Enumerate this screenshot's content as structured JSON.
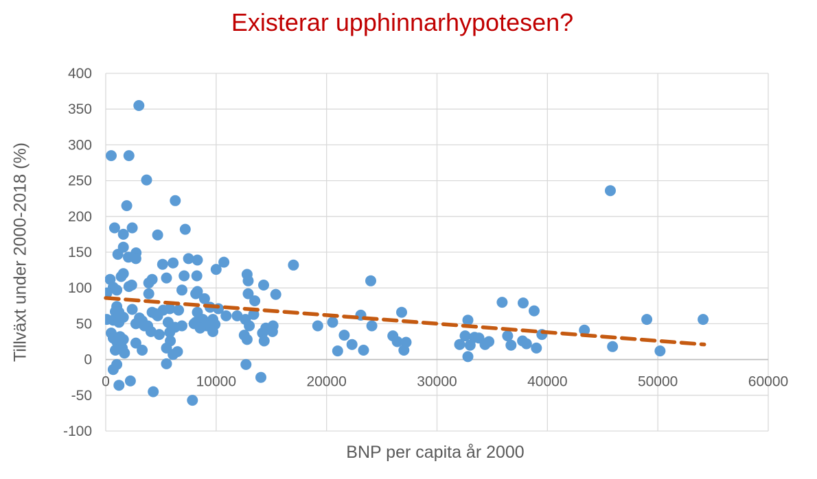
{
  "chart_data": {
    "type": "scatter",
    "title": "Existerar upphinnarhypotesen?",
    "xlabel": "BNP per capita år 2000",
    "ylabel": "Tillväxt under 2000-2018 (%)",
    "xlim": [
      0,
      60000
    ],
    "ylim": [
      -100,
      400
    ],
    "x_ticks": [
      0,
      10000,
      20000,
      30000,
      40000,
      50000,
      60000
    ],
    "y_ticks": [
      -100,
      -50,
      0,
      50,
      100,
      150,
      200,
      250,
      300,
      350,
      400
    ],
    "grid": "both",
    "legend": "none",
    "series": [
      {
        "name": "countries",
        "points": [
          [
            3000,
            355
          ],
          [
            500,
            285
          ],
          [
            2100,
            285
          ],
          [
            3700,
            251
          ],
          [
            45700,
            236
          ],
          [
            6300,
            222
          ],
          [
            1900,
            215
          ],
          [
            800,
            184
          ],
          [
            2400,
            184
          ],
          [
            7200,
            182
          ],
          [
            1600,
            175
          ],
          [
            4700,
            174
          ],
          [
            1600,
            157
          ],
          [
            2750,
            149
          ],
          [
            1100,
            147
          ],
          [
            2050,
            143
          ],
          [
            2730,
            141
          ],
          [
            7500,
            141
          ],
          [
            8300,
            139
          ],
          [
            5150,
            133
          ],
          [
            6100,
            135
          ],
          [
            10700,
            136
          ],
          [
            10000,
            126
          ],
          [
            17000,
            132
          ],
          [
            12800,
            119
          ],
          [
            12900,
            110
          ],
          [
            24000,
            110
          ],
          [
            1600,
            120
          ],
          [
            1400,
            116
          ],
          [
            400,
            112
          ],
          [
            4200,
            112
          ],
          [
            3900,
            107
          ],
          [
            5500,
            114
          ],
          [
            7100,
            117
          ],
          [
            8250,
            117
          ],
          [
            14300,
            104
          ],
          [
            2350,
            104
          ],
          [
            2100,
            102
          ],
          [
            680,
            101
          ],
          [
            100,
            93
          ],
          [
            1000,
            97
          ],
          [
            3900,
            92
          ],
          [
            6900,
            97
          ],
          [
            8150,
            92
          ],
          [
            8300,
            95
          ],
          [
            8950,
            85
          ],
          [
            12900,
            92
          ],
          [
            15400,
            91
          ],
          [
            13500,
            82
          ],
          [
            35900,
            80
          ],
          [
            37800,
            79
          ],
          [
            1000,
            74
          ],
          [
            9450,
            73
          ],
          [
            10200,
            71
          ],
          [
            5800,
            71
          ],
          [
            5200,
            69
          ],
          [
            6600,
            69
          ],
          [
            2400,
            70
          ],
          [
            870,
            67
          ],
          [
            1200,
            66
          ],
          [
            4200,
            66
          ],
          [
            8300,
            66
          ],
          [
            26800,
            66
          ],
          [
            4500,
            64
          ],
          [
            13400,
            63
          ],
          [
            23100,
            62
          ],
          [
            38800,
            68
          ],
          [
            4700,
            61
          ],
          [
            11900,
            61
          ],
          [
            10900,
            61
          ],
          [
            1600,
            59
          ],
          [
            3050,
            58
          ],
          [
            100,
            56
          ],
          [
            680,
            55
          ],
          [
            8800,
            56
          ],
          [
            9700,
            56
          ],
          [
            12650,
            56
          ],
          [
            32800,
            55
          ],
          [
            49000,
            56
          ],
          [
            54100,
            56
          ],
          [
            3300,
            54
          ],
          [
            1200,
            52
          ],
          [
            5650,
            52
          ],
          [
            8150,
            52
          ],
          [
            20550,
            52
          ],
          [
            2730,
            50
          ],
          [
            8000,
            50
          ],
          [
            9900,
            49
          ],
          [
            3500,
            47
          ],
          [
            3800,
            47
          ],
          [
            6900,
            47
          ],
          [
            9150,
            47
          ],
          [
            13000,
            47
          ],
          [
            15150,
            47
          ],
          [
            19200,
            47
          ],
          [
            24100,
            47
          ],
          [
            14500,
            44
          ],
          [
            8550,
            44
          ],
          [
            6270,
            45
          ],
          [
            43350,
            41
          ],
          [
            4100,
            39
          ],
          [
            9700,
            39
          ],
          [
            15100,
            39
          ],
          [
            5800,
            38
          ],
          [
            14200,
            37
          ],
          [
            500,
            37
          ],
          [
            39500,
            35
          ],
          [
            4850,
            35
          ],
          [
            12550,
            34
          ],
          [
            21600,
            34
          ],
          [
            26000,
            33
          ],
          [
            32550,
            33
          ],
          [
            36400,
            33
          ],
          [
            1300,
            32
          ],
          [
            680,
            30
          ],
          [
            33400,
            31
          ],
          [
            33800,
            30
          ],
          [
            12800,
            28
          ],
          [
            1600,
            28
          ],
          [
            14350,
            26
          ],
          [
            5850,
            26
          ],
          [
            26400,
            25
          ],
          [
            34700,
            25
          ],
          [
            1000,
            25
          ],
          [
            37750,
            26
          ],
          [
            27200,
            24
          ],
          [
            2730,
            23
          ],
          [
            33000,
            20
          ],
          [
            36700,
            20
          ],
          [
            38100,
            22
          ],
          [
            32050,
            21
          ],
          [
            34350,
            21
          ],
          [
            22300,
            21
          ],
          [
            1400,
            18
          ],
          [
            45900,
            18
          ],
          [
            1500,
            16
          ],
          [
            39000,
            16
          ],
          [
            5500,
            16
          ],
          [
            23350,
            13
          ],
          [
            27000,
            13
          ],
          [
            870,
            13
          ],
          [
            3300,
            13
          ],
          [
            21000,
            12
          ],
          [
            50200,
            12
          ],
          [
            6500,
            11
          ],
          [
            1700,
            9
          ],
          [
            6100,
            7
          ],
          [
            32800,
            4
          ],
          [
            5500,
            -6
          ],
          [
            1000,
            -7
          ],
          [
            12700,
            -7
          ],
          [
            680,
            -14
          ],
          [
            14050,
            -25
          ],
          [
            2230,
            -30
          ],
          [
            1200,
            -36
          ],
          [
            4300,
            -45
          ],
          [
            7850,
            -57
          ]
        ]
      }
    ],
    "trendline": {
      "type": "linear",
      "style": "dashed",
      "x_start": 0,
      "y_start": 86,
      "x_end": 54200,
      "y_end": 21
    },
    "colors": {
      "points": "#5B9BD5",
      "trendline": "#C55A11",
      "title": "#C00000",
      "axis_text": "#595959",
      "gridlines": "#D9D9D9",
      "axis_line": "#BFBFBF",
      "background": "#FFFFFF"
    }
  }
}
